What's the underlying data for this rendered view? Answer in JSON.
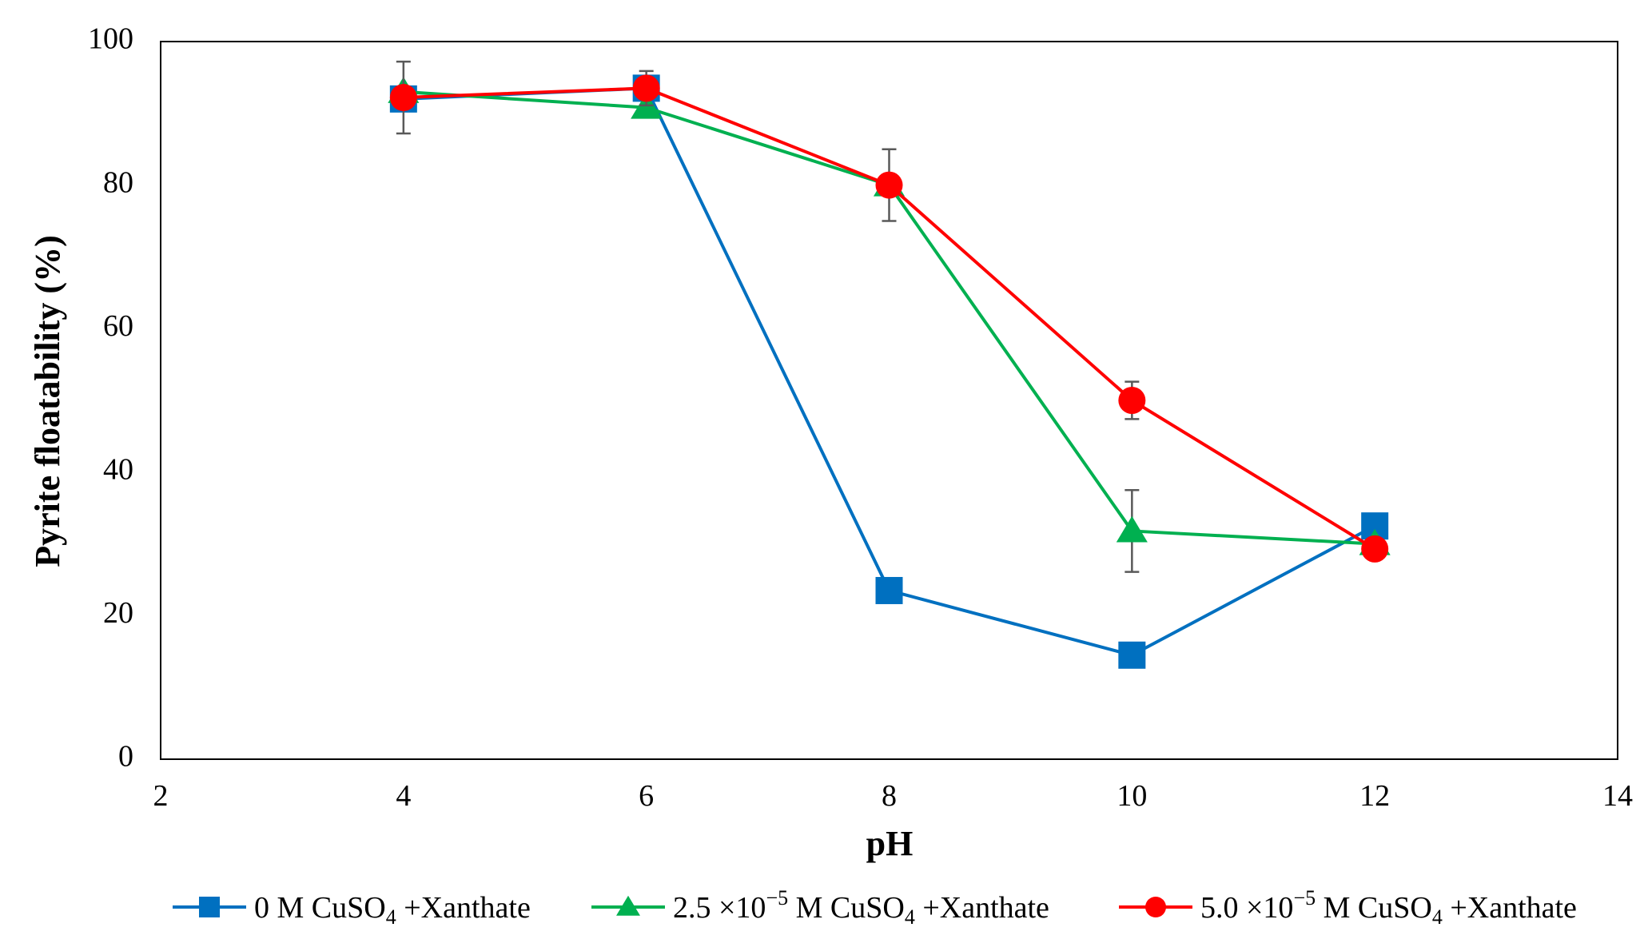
{
  "chart_data": {
    "type": "line",
    "title": "",
    "xlabel": "pH",
    "ylabel": "Pyrite floatability (%)",
    "xlim": [
      2,
      14
    ],
    "ylim": [
      0,
      100
    ],
    "xticks": [
      2,
      4,
      6,
      8,
      10,
      12,
      14
    ],
    "yticks": [
      0,
      20,
      40,
      60,
      80,
      100
    ],
    "grid": false,
    "legend_position": "bottom",
    "series": [
      {
        "name": "0 M CuSO4 +Xanthate",
        "legend": {
          "pre": "0 M CuSO",
          "sub": "4",
          "mid": "",
          "sup": "",
          "post": "  +Xanthate"
        },
        "color": "#0070C0",
        "marker": "square",
        "x": [
          4,
          6,
          8,
          10,
          12
        ],
        "y": [
          92.0,
          93.5,
          23.5,
          14.5,
          32.5
        ],
        "err": [
          0,
          0,
          0,
          0,
          0
        ]
      },
      {
        "name": "2.5×10^−5 M CuSO4 +Xanthate",
        "legend": {
          "pre": "2.5 ×10",
          "sup": "−5",
          "mid": " M CuSO",
          "sub": "4",
          "post": "  +Xanthate"
        },
        "color": "#00B050",
        "marker": "triangle",
        "x": [
          4,
          6,
          8,
          10,
          12
        ],
        "y": [
          93.0,
          90.8,
          80.0,
          31.8,
          30.0
        ],
        "err": [
          0,
          0,
          0,
          5.7,
          0
        ]
      },
      {
        "name": "5.0×10^−5 M CuSO4 +Xanthate",
        "legend": {
          "pre": "5.0 ×10",
          "sup": "−5",
          "mid": " M CuSO",
          "sub": "4",
          "post": "  +Xanthate"
        },
        "color": "#FF0000",
        "marker": "circle",
        "x": [
          4,
          6,
          8,
          10,
          12
        ],
        "y": [
          92.2,
          93.5,
          80.0,
          50.0,
          29.3
        ],
        "err": [
          5.0,
          2.4,
          5.0,
          2.6,
          0
        ]
      }
    ],
    "error_bar_color": "#595959"
  }
}
